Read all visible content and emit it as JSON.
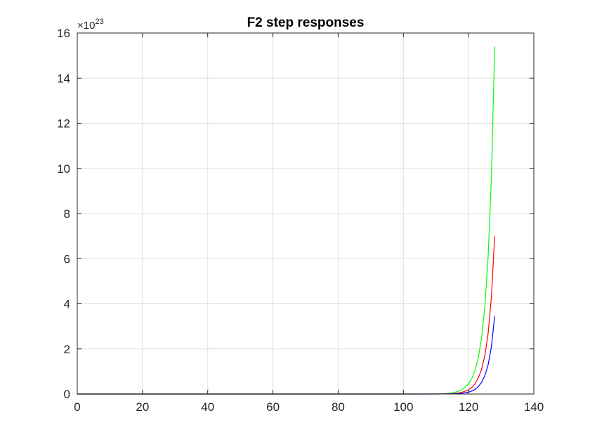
{
  "chart_data": {
    "type": "line",
    "title": "F2 step responses",
    "xlabel": "",
    "ylabel": "",
    "xlim": [
      0,
      140
    ],
    "ylim": [
      0,
      16
    ],
    "y_exponent_base": "×10",
    "y_exponent": "23",
    "y_multiplier": 1e+23,
    "grid": true,
    "xticks": [
      0,
      20,
      40,
      60,
      80,
      100,
      120,
      140
    ],
    "yticks": [
      0,
      2,
      4,
      6,
      8,
      10,
      12,
      14,
      16
    ],
    "xtick_labels": [
      "0",
      "20",
      "40",
      "60",
      "80",
      "100",
      "120",
      "140"
    ],
    "ytick_labels": [
      "0",
      "2",
      "4",
      "6",
      "8",
      "10",
      "12",
      "14",
      "16"
    ],
    "series": [
      {
        "color": "#00ff00",
        "x": [
          0,
          100,
          110,
          112,
          114,
          116,
          118,
          120,
          121,
          122,
          123,
          124,
          125,
          126,
          127,
          128
        ],
        "values": [
          0,
          0,
          0.004,
          0.01,
          0.03,
          0.08,
          0.19,
          0.45,
          0.7,
          1.06,
          1.62,
          2.5,
          3.9,
          6.1,
          9.6,
          15.4
        ]
      },
      {
        "color": "#ff0000",
        "x": [
          0,
          100,
          110,
          112,
          114,
          116,
          118,
          120,
          121,
          122,
          123,
          124,
          125,
          126,
          127,
          128
        ],
        "values": [
          0,
          0,
          0.002,
          0.005,
          0.012,
          0.03,
          0.075,
          0.19,
          0.3,
          0.46,
          0.72,
          1.1,
          1.72,
          2.7,
          4.3,
          7.0
        ]
      },
      {
        "color": "#0000ff",
        "x": [
          0,
          100,
          110,
          112,
          114,
          116,
          118,
          120,
          121,
          122,
          123,
          124,
          125,
          126,
          127,
          128
        ],
        "values": [
          0,
          0,
          0.001,
          0.002,
          0.005,
          0.013,
          0.033,
          0.085,
          0.135,
          0.21,
          0.33,
          0.52,
          0.82,
          1.3,
          2.1,
          3.45
        ]
      }
    ]
  }
}
